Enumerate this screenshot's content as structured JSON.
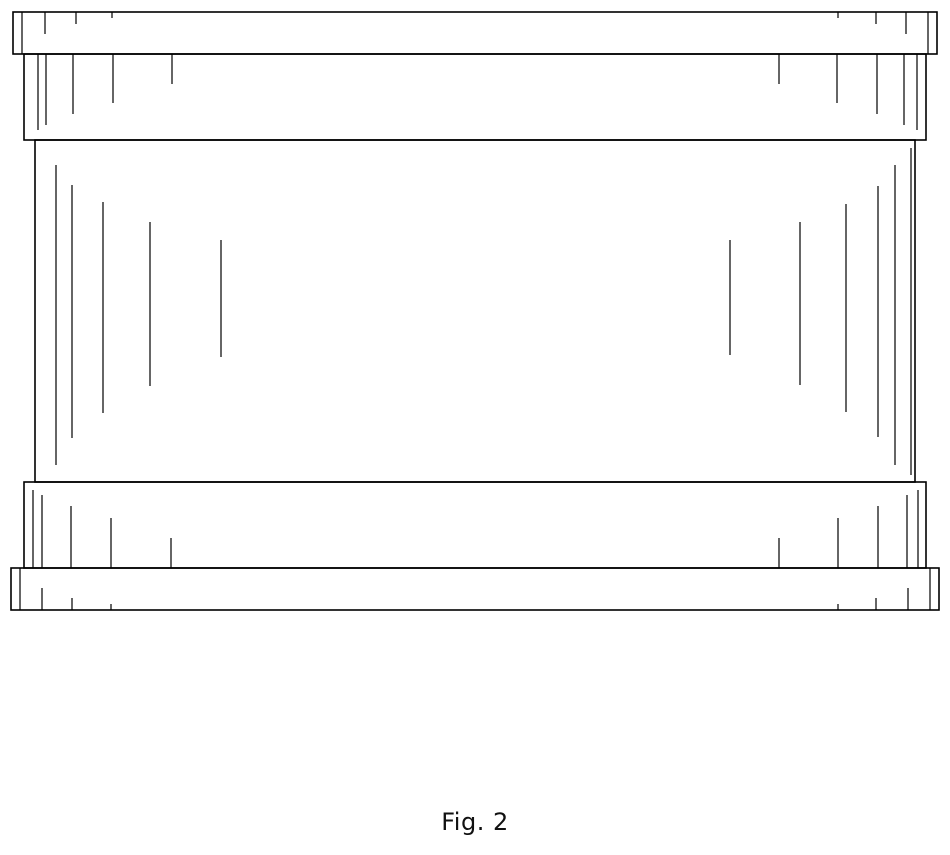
{
  "figure": {
    "label": "Fig. 2"
  }
}
